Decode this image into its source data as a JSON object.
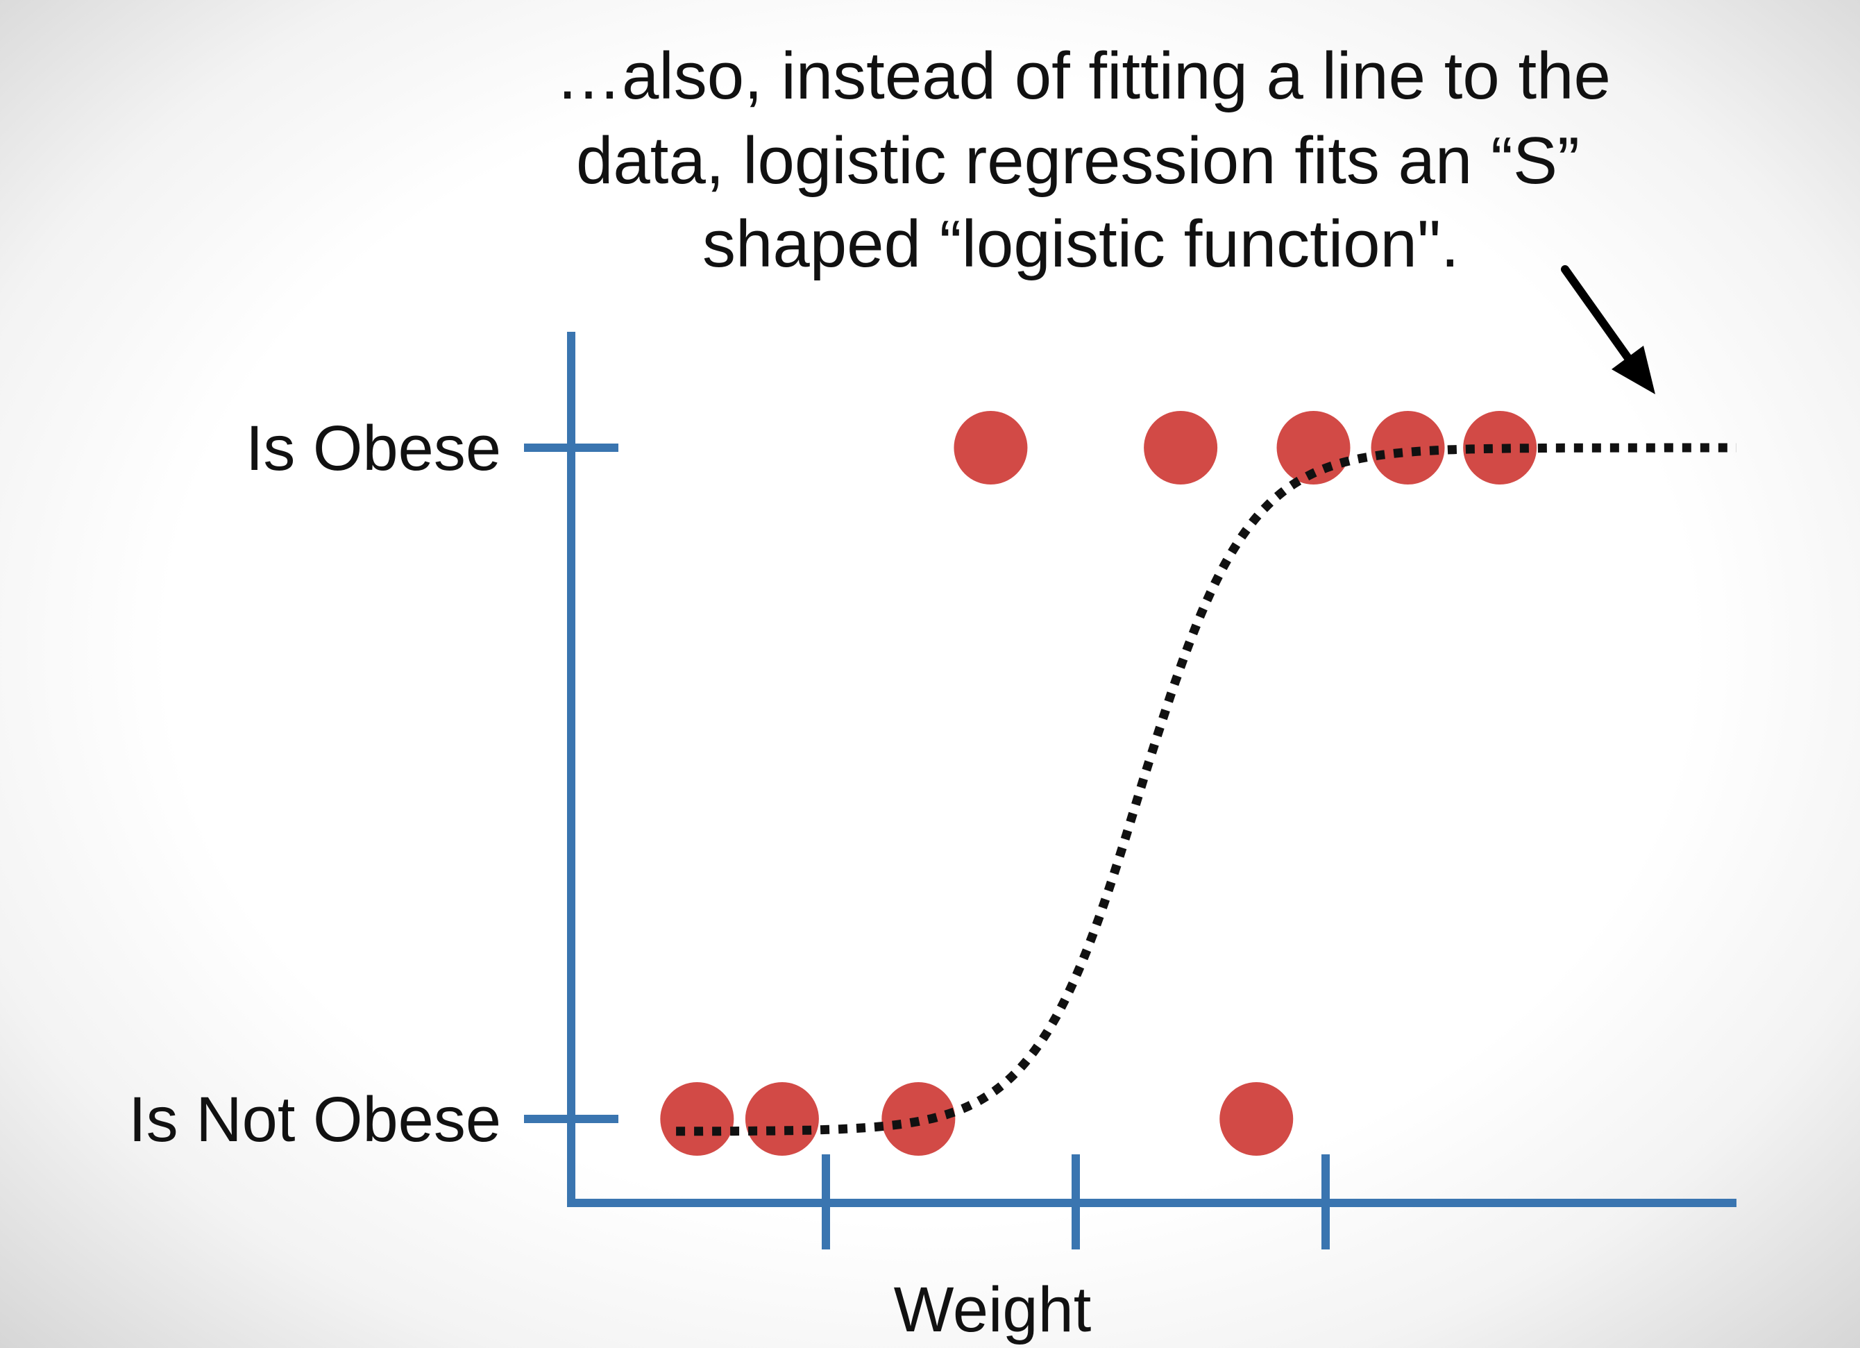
{
  "caption": {
    "lines": [
      "…also, instead of fitting a line to the",
      "data, logistic regression fits an “S”",
      "shaped “logistic function\"."
    ]
  },
  "chart_data": {
    "type": "scatter",
    "title": "",
    "xlabel": "Weight",
    "ylabel": "",
    "y_tick_labels": [
      "Is Not Obese",
      "Is Obese"
    ],
    "x_tick_count": 3,
    "xlim": [
      0,
      1
    ],
    "ylim": [
      0,
      1
    ],
    "grid": false,
    "series": [
      {
        "type": "scatter",
        "points": [
          {
            "x": 0.108,
            "y": 0
          },
          {
            "x": 0.181,
            "y": 0
          },
          {
            "x": 0.298,
            "y": 0
          },
          {
            "x": 0.588,
            "y": 0
          },
          {
            "x": 0.36,
            "y": 1
          },
          {
            "x": 0.523,
            "y": 1
          },
          {
            "x": 0.637,
            "y": 1
          },
          {
            "x": 0.718,
            "y": 1
          },
          {
            "x": 0.797,
            "y": 1
          }
        ]
      },
      {
        "type": "line",
        "style": "dotted",
        "function": "logistic",
        "midpoint_x": 0.49,
        "steepness": 22,
        "x_range": [
          0.09,
          1.0
        ]
      }
    ],
    "annotation": {
      "arrow_points_to": "logistic curve upper plateau"
    },
    "colors": {
      "axis": "#3a75b0",
      "points": "#d24a46",
      "curve": "#111111",
      "text": "#111111"
    }
  }
}
